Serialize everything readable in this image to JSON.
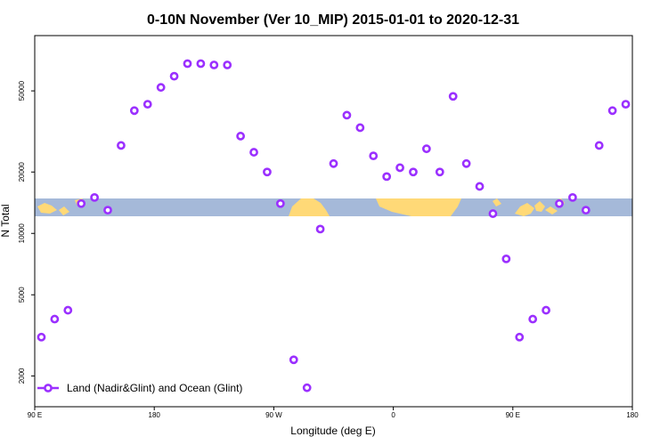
{
  "chart_data": {
    "type": "scatter",
    "title": "0-10N November (Ver 10_MIP)   2015-01-01 to 2020-12-31",
    "xlabel": "Longitude (deg E)",
    "ylabel": "N Total",
    "y_scale": "log",
    "xlim": [
      90,
      540
    ],
    "ylim_log10": [
      3.15,
      4.97
    ],
    "x_ticks": [
      {
        "value": 90,
        "label": "90 E"
      },
      {
        "value": 180,
        "label": "180"
      },
      {
        "value": 270,
        "label": "90 W"
      },
      {
        "value": 360,
        "label": "0"
      },
      {
        "value": 450,
        "label": "90 E"
      },
      {
        "value": 540,
        "label": "180"
      }
    ],
    "y_ticks": [
      {
        "value": 2000,
        "label": "2000"
      },
      {
        "value": 5000,
        "label": "5000"
      },
      {
        "value": 10000,
        "label": "10000"
      },
      {
        "value": 20000,
        "label": "20000"
      },
      {
        "value": 50000,
        "label": "50000"
      }
    ],
    "series": [
      {
        "name": "Land (Nadir&Glint) and Ocean (Glint)",
        "color": "#9b30ff",
        "x": [
          95,
          105,
          115,
          125,
          135,
          145,
          155,
          165,
          175,
          185,
          195,
          205,
          215,
          225,
          235,
          245,
          255,
          265,
          275,
          285,
          295,
          305,
          315,
          325,
          335,
          345,
          355,
          365,
          375,
          385,
          395,
          405,
          415,
          425,
          435,
          445,
          455,
          465,
          475,
          485,
          495,
          505,
          515,
          525,
          535
        ],
        "y": [
          3100,
          3800,
          4200,
          14000,
          15000,
          13000,
          27000,
          40000,
          43000,
          52000,
          59000,
          68000,
          68000,
          67000,
          67000,
          30000,
          25000,
          20000,
          14000,
          2400,
          1750,
          10500,
          22000,
          38000,
          33000,
          24000,
          19000,
          21000,
          20000,
          26000,
          20000,
          47000,
          22000,
          17000,
          12500,
          7500,
          3100,
          3800,
          4200,
          14000,
          15000,
          13000,
          27000,
          40000,
          43000
        ]
      }
    ],
    "background_map": {
      "ocean_color": "#a5b9d9",
      "land_color": "#ffd977"
    },
    "legend": {
      "position": "bottom-left",
      "entries": [
        "Land (Nadir&Glint) and Ocean (Glint)"
      ]
    },
    "grid": false
  }
}
